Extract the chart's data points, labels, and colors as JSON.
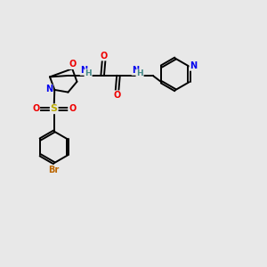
{
  "bg_color": "#e8e8e8",
  "atom_colors": {
    "C": "#000000",
    "N": "#0000ee",
    "O": "#ee0000",
    "S": "#bbaa00",
    "Br": "#bb6600",
    "H": "#448888"
  },
  "lw": 1.4,
  "fs": 7.0
}
